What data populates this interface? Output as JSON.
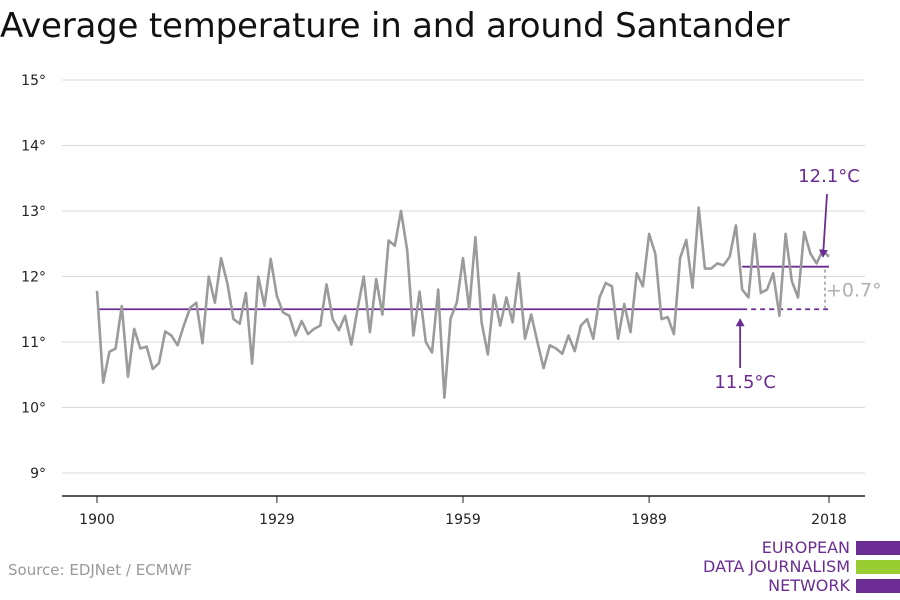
{
  "title": "Average temperature in and around Santander",
  "source": "Source: EDJNet / ECMWF",
  "logo": {
    "lines": [
      "EUROPEAN",
      "DATA JOURNALISM",
      "NETWORK"
    ],
    "colors": [
      "#6b2c93",
      "#9acd32",
      "#6b2c93"
    ]
  },
  "colors": {
    "series": "#9b9b9b",
    "accent": "#6b2c93",
    "grid": "#d9d9d9",
    "axis": "#222222",
    "diff_label": "#b0b0b0"
  },
  "chart_data": {
    "type": "line",
    "xlabel": "",
    "ylabel": "",
    "xlim": [
      1900,
      2018
    ],
    "ylim": [
      9,
      15
    ],
    "y_ticks": [
      9,
      10,
      11,
      12,
      13,
      14,
      15
    ],
    "y_tick_labels": [
      "9°",
      "10°",
      "11°",
      "12°",
      "13°",
      "14°",
      "15°"
    ],
    "x_ticks": [
      1900,
      1929,
      1959,
      1989,
      2018
    ],
    "x_tick_labels": [
      "1900",
      "1929",
      "1959",
      "1989",
      "2018"
    ],
    "grid": true,
    "series": [
      {
        "x": [
          1900,
          1901,
          1902,
          1903,
          1904,
          1905,
          1906,
          1907,
          1908,
          1909,
          1910,
          1911,
          1912,
          1913,
          1914,
          1915,
          1916,
          1917,
          1918,
          1919,
          1920,
          1921,
          1922,
          1923,
          1924,
          1925,
          1926,
          1927,
          1928,
          1929,
          1930,
          1931,
          1932,
          1933,
          1934,
          1935,
          1936,
          1937,
          1938,
          1939,
          1940,
          1941,
          1942,
          1943,
          1944,
          1945,
          1946,
          1947,
          1948,
          1949,
          1950,
          1951,
          1952,
          1953,
          1954,
          1955,
          1956,
          1957,
          1958,
          1959,
          1960,
          1961,
          1962,
          1963,
          1964,
          1965,
          1966,
          1967,
          1968,
          1969,
          1970,
          1971,
          1972,
          1973,
          1974,
          1975,
          1976,
          1977,
          1978,
          1979,
          1980,
          1981,
          1982,
          1983,
          1984,
          1985,
          1986,
          1987,
          1988,
          1989,
          1990,
          1991,
          1992,
          1993,
          1994,
          1995,
          1996,
          1997,
          1998,
          1999,
          2000,
          2001,
          2002,
          2003,
          2004,
          2005,
          2006,
          2007,
          2008,
          2009,
          2010,
          2011,
          2012,
          2013,
          2014,
          2015,
          2016,
          2017,
          2018
        ],
        "values": [
          11.78,
          10.38,
          10.85,
          10.9,
          11.55,
          10.47,
          11.2,
          10.9,
          10.93,
          10.59,
          10.68,
          11.16,
          11.1,
          10.95,
          11.25,
          11.52,
          11.6,
          10.98,
          12.0,
          11.6,
          12.28,
          11.9,
          11.35,
          11.28,
          11.75,
          10.67,
          12.0,
          11.55,
          12.27,
          11.7,
          11.45,
          11.4,
          11.1,
          11.32,
          11.12,
          11.2,
          11.25,
          11.88,
          11.35,
          11.18,
          11.4,
          10.96,
          11.5,
          12.0,
          11.15,
          11.96,
          11.42,
          12.55,
          12.47,
          13.0,
          12.4,
          11.1,
          11.77,
          11.0,
          10.84,
          11.8,
          10.15,
          11.36,
          11.6,
          12.28,
          11.5,
          12.6,
          11.3,
          10.81,
          11.72,
          11.25,
          11.68,
          11.3,
          12.05,
          11.05,
          11.42,
          11.0,
          10.6,
          10.95,
          10.9,
          10.82,
          11.1,
          10.86,
          11.25,
          11.35,
          11.05,
          11.68,
          11.9,
          11.85,
          11.05,
          11.58,
          11.15,
          12.05,
          11.85,
          12.65,
          12.35,
          11.35,
          11.38,
          11.12,
          12.28,
          12.56,
          11.83,
          13.05,
          12.12,
          12.12,
          12.2,
          12.17,
          12.3,
          12.78,
          11.8,
          11.68,
          12.65,
          11.75,
          11.8,
          12.05,
          11.4,
          12.65,
          11.93,
          11.68,
          12.68,
          12.35,
          12.2,
          12.4,
          12.3
        ]
      }
    ],
    "reference_lines": [
      {
        "from": 1900,
        "to": 2004,
        "y": 11.5,
        "style": "solid"
      },
      {
        "from": 2004,
        "to": 2018,
        "y": 11.5,
        "style": "dashed"
      },
      {
        "from": 2004,
        "to": 2018,
        "y": 12.15,
        "style": "solid"
      }
    ],
    "annotations": [
      {
        "label": "12.1°C",
        "x": 2018,
        "y": 12.15
      },
      {
        "label": "11.5°C",
        "x": 2004,
        "y": 11.5
      },
      {
        "label": "+0.7°",
        "x": 2018,
        "y": 11.82
      }
    ]
  }
}
